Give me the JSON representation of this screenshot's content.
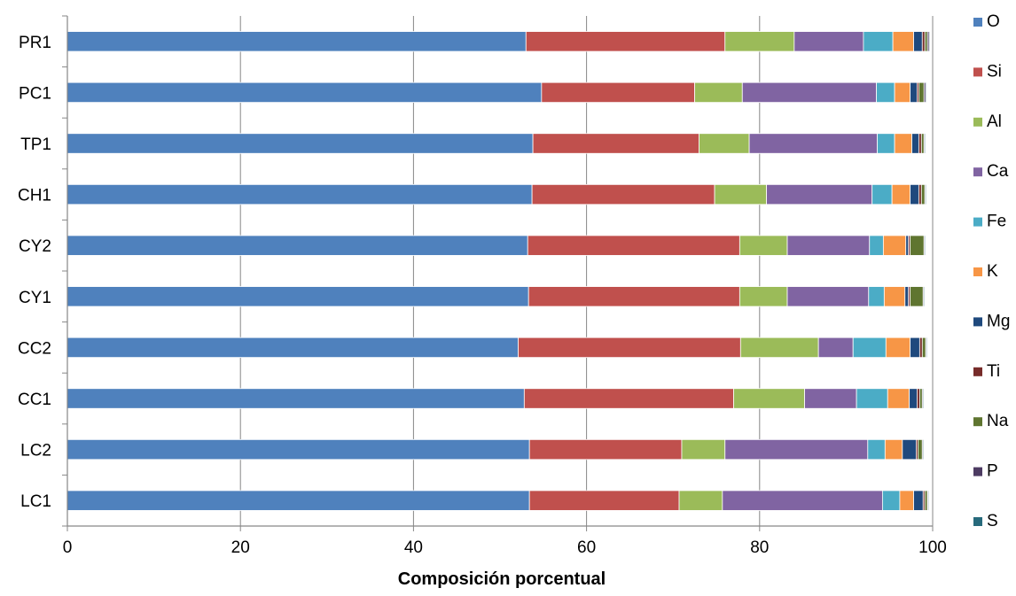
{
  "chart_data": {
    "type": "bar",
    "orientation": "horizontal",
    "stacked": true,
    "xlabel": "Composición porcentual",
    "ylabel": "",
    "xlim": [
      0,
      100
    ],
    "xticks": [
      0,
      20,
      40,
      60,
      80,
      100
    ],
    "grid": true,
    "legend_position": "right",
    "categories": [
      "PR1",
      "PC1",
      "TP1",
      "CH1",
      "CY2",
      "CY1",
      "CC2",
      "CC1",
      "LC2",
      "LC1"
    ],
    "series": [
      {
        "name": "O",
        "color": "#4F81BD",
        "values": [
          53.0,
          54.8,
          53.8,
          53.7,
          53.2,
          53.3,
          52.1,
          52.8,
          53.4,
          53.4
        ]
      },
      {
        "name": "Si",
        "color": "#C0504D",
        "values": [
          23.0,
          17.7,
          19.2,
          21.1,
          24.5,
          24.4,
          25.7,
          24.2,
          17.6,
          17.3
        ]
      },
      {
        "name": "Al",
        "color": "#9BBB59",
        "values": [
          8.0,
          5.5,
          5.8,
          6.0,
          5.5,
          5.5,
          9.0,
          8.2,
          5.0,
          5.0
        ]
      },
      {
        "name": "Ca",
        "color": "#8064A2",
        "values": [
          8.0,
          15.5,
          14.8,
          12.2,
          9.5,
          9.4,
          4.0,
          6.0,
          16.5,
          18.5
        ]
      },
      {
        "name": "Fe",
        "color": "#4BACC6",
        "values": [
          3.4,
          2.1,
          2.0,
          2.3,
          1.6,
          1.8,
          3.8,
          3.6,
          2.0,
          2.0
        ]
      },
      {
        "name": "K",
        "color": "#F79646",
        "values": [
          2.4,
          1.8,
          2.0,
          2.1,
          2.6,
          2.4,
          2.8,
          2.5,
          2.0,
          1.6
        ]
      },
      {
        "name": "Mg",
        "color": "#1F497D",
        "values": [
          1.0,
          0.8,
          0.8,
          1.0,
          0.3,
          0.4,
          1.1,
          0.9,
          1.6,
          1.1
        ]
      },
      {
        "name": "Ti",
        "color": "#772C2A",
        "values": [
          0.3,
          0.2,
          0.3,
          0.3,
          0.2,
          0.2,
          0.3,
          0.3,
          0.2,
          0.2
        ]
      },
      {
        "name": "Na",
        "color": "#5F7530",
        "values": [
          0.3,
          0.6,
          0.3,
          0.4,
          1.6,
          1.5,
          0.4,
          0.3,
          0.5,
          0.3
        ]
      },
      {
        "name": "P",
        "color": "#4D3B62",
        "values": [
          0.2,
          0.2,
          0.1,
          0.1,
          0.1,
          0.1,
          0.1,
          0.1,
          0.1,
          0.1
        ]
      },
      {
        "name": "S",
        "color": "#276A7C",
        "values": [
          0.1,
          0.1,
          0.1,
          0.1,
          0.1,
          0.1,
          0.1,
          0.1,
          0.1,
          0.1
        ]
      }
    ]
  }
}
